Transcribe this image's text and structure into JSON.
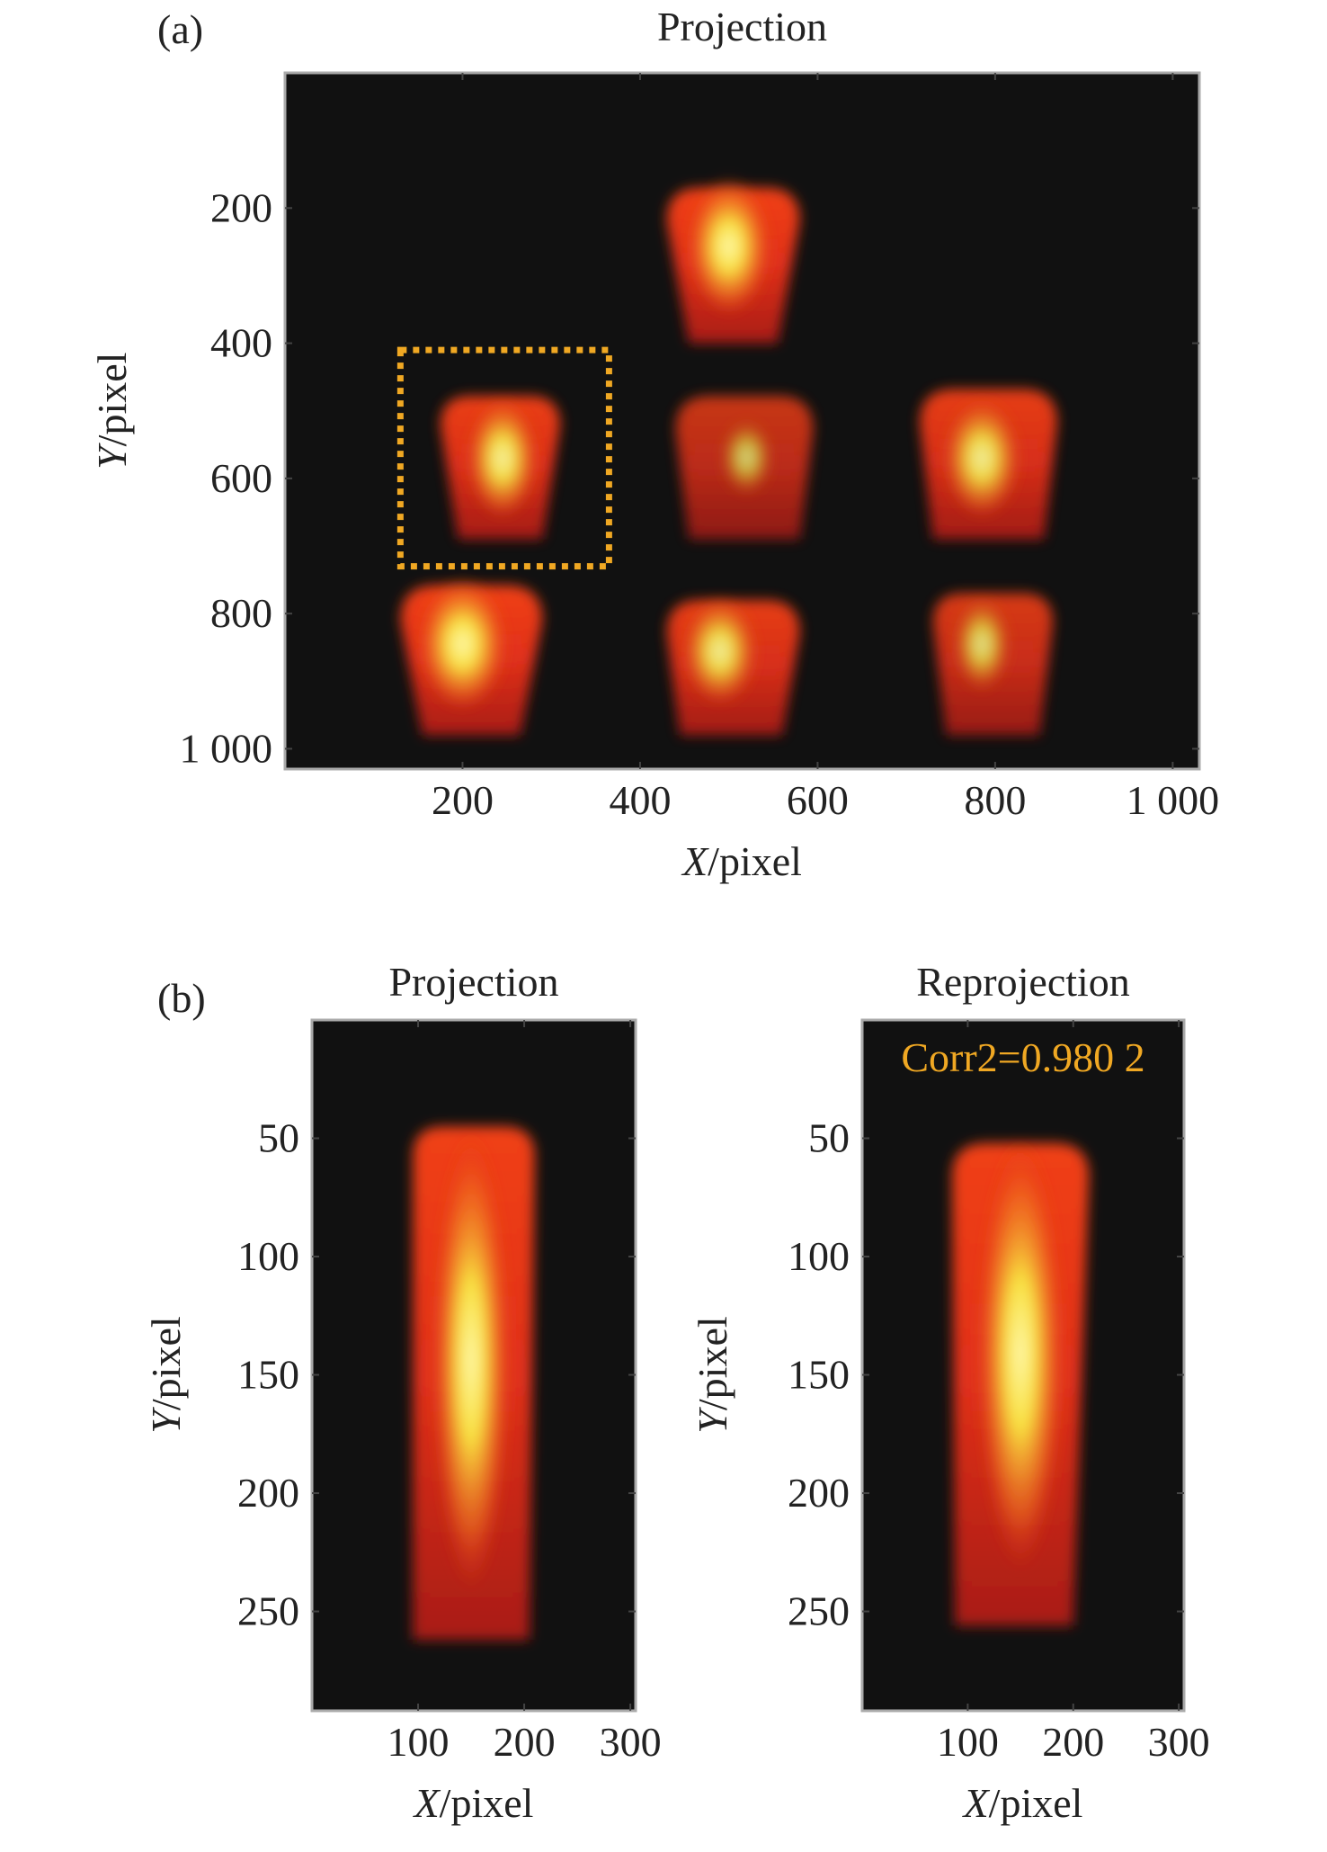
{
  "chart_data": [
    {
      "type": "heatmap",
      "panel_label": "(a)",
      "title": "Projection",
      "xlabel_var": "X",
      "xlabel_unit": "/pixel",
      "ylabel_var": "Y",
      "ylabel_unit": "/pixel",
      "xlim": [
        0,
        1030
      ],
      "ylim": [
        0,
        1030
      ],
      "y_reversed": true,
      "xticks": [
        200,
        400,
        600,
        800,
        1000
      ],
      "xtick_labels": [
        "200",
        "400",
        "600",
        "800",
        "1 000"
      ],
      "yticks": [
        200,
        400,
        600,
        800,
        1000
      ],
      "ytick_labels": [
        "200",
        "400",
        "600",
        "800",
        "1 000"
      ],
      "colormap": "hot",
      "highlight_box": {
        "x": [
          130,
          365
        ],
        "y": [
          410,
          730
        ],
        "color": "#f0a823",
        "style": "dotted"
      },
      "blobs": [
        {
          "x_top": [
            430,
            580
          ],
          "x_bottom": [
            455,
            555
          ],
          "y": [
            170,
            400
          ],
          "hot": [
            500,
            205
          ],
          "intensity": 1.0
        },
        {
          "x_top": [
            175,
            310
          ],
          "x_bottom": [
            195,
            290
          ],
          "y": [
            478,
            690
          ],
          "hot": [
            245,
            525
          ],
          "intensity": 0.95
        },
        {
          "x_top": [
            440,
            595
          ],
          "x_bottom": [
            455,
            580
          ],
          "y": [
            478,
            690
          ],
          "hot": [
            520,
            540
          ],
          "intensity": 0.6
        },
        {
          "x_top": [
            715,
            870
          ],
          "x_bottom": [
            730,
            855
          ],
          "y": [
            468,
            690
          ],
          "hot": [
            785,
            525
          ],
          "intensity": 0.9
        },
        {
          "x_top": [
            130,
            290
          ],
          "x_bottom": [
            155,
            265
          ],
          "y": [
            758,
            980
          ],
          "hot": [
            200,
            795
          ],
          "intensity": 1.0
        },
        {
          "x_top": [
            430,
            580
          ],
          "x_bottom": [
            445,
            560
          ],
          "y": [
            780,
            980
          ],
          "hot": [
            490,
            815
          ],
          "intensity": 0.9
        },
        {
          "x_top": [
            730,
            865
          ],
          "x_bottom": [
            745,
            850
          ],
          "y": [
            770,
            980
          ],
          "hot": [
            785,
            810
          ],
          "intensity": 0.75
        }
      ]
    },
    {
      "type": "heatmap",
      "panel_label": "(b)",
      "title": "Projection",
      "xlabel_var": "X",
      "xlabel_unit": "/pixel",
      "ylabel_var": "Y",
      "ylabel_unit": "/pixel",
      "xlim": [
        0,
        305
      ],
      "ylim": [
        0,
        292
      ],
      "y_reversed": true,
      "xticks": [
        100,
        200,
        300
      ],
      "xtick_labels": [
        "100",
        "200",
        "300"
      ],
      "yticks": [
        50,
        100,
        150,
        200,
        250
      ],
      "ytick_labels": [
        "50",
        "100",
        "150",
        "200",
        "250"
      ],
      "colormap": "hot",
      "blobs": [
        {
          "x_top": [
            95,
            210
          ],
          "x_bottom": [
            95,
            205
          ],
          "y": [
            45,
            262
          ],
          "hot": [
            150,
            95
          ],
          "intensity": 1.0
        }
      ]
    },
    {
      "type": "heatmap",
      "title": "Reprojection",
      "annotation": "Corr2=0.980 2",
      "annotation_color": "#f0a823",
      "xlabel_var": "X",
      "xlabel_unit": "/pixel",
      "ylabel_var": "Y",
      "ylabel_unit": "/pixel",
      "xlim": [
        0,
        305
      ],
      "ylim": [
        0,
        292
      ],
      "y_reversed": true,
      "xticks": [
        100,
        200,
        300
      ],
      "xtick_labels": [
        "100",
        "200",
        "300"
      ],
      "yticks": [
        50,
        100,
        150,
        200,
        250
      ],
      "ytick_labels": [
        "50",
        "100",
        "150",
        "200",
        "250"
      ],
      "colormap": "hot",
      "blobs": [
        {
          "x_top": [
            85,
            215
          ],
          "x_bottom": [
            88,
            200
          ],
          "y": [
            52,
            256
          ],
          "hot": [
            150,
            95
          ],
          "intensity": 1.0
        }
      ]
    }
  ]
}
